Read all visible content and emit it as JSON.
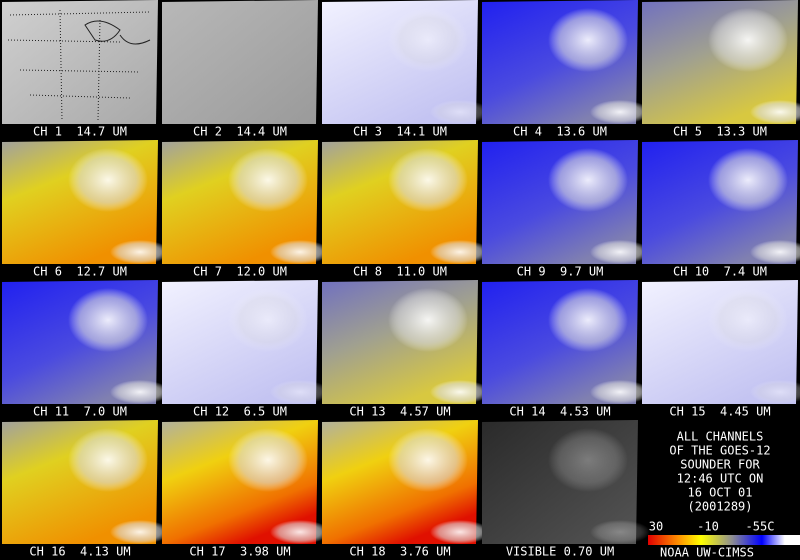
{
  "panels": [
    {
      "label": "CH 1  14.7 UM"
    },
    {
      "label": "CH 2  14.4 UM"
    },
    {
      "label": "CH 3  14.1 UM"
    },
    {
      "label": "CH 4  13.6 UM"
    },
    {
      "label": "CH 5  13.3 UM"
    },
    {
      "label": "CH 6  12.7 UM"
    },
    {
      "label": "CH 7  12.0 UM"
    },
    {
      "label": "CH 8  11.0 UM"
    },
    {
      "label": "CH 9  9.7 UM"
    },
    {
      "label": "CH 10  7.4 UM"
    },
    {
      "label": "CH 11  7.0 UM"
    },
    {
      "label": "CH 12  6.5 UM"
    },
    {
      "label": "CH 13  4.57 UM"
    },
    {
      "label": "CH 14  4.53 UM"
    },
    {
      "label": "CH 15  4.45 UM"
    },
    {
      "label": "CH 16  4.13 UM"
    },
    {
      "label": "CH 17  3.98 UM"
    },
    {
      "label": "CH 18  3.76 UM"
    },
    {
      "label": "VISIBLE 0.70 UM"
    }
  ],
  "info": {
    "lines": [
      "ALL CHANNELS",
      "OF THE GOES-12",
      "SOUNDER FOR",
      "12:46 UTC ON",
      "16 OCT 01",
      "(2001289)"
    ],
    "scale_labels": [
      "30",
      "-10",
      "-55C"
    ],
    "credit": "NOAA UW-CIMSS"
  }
}
